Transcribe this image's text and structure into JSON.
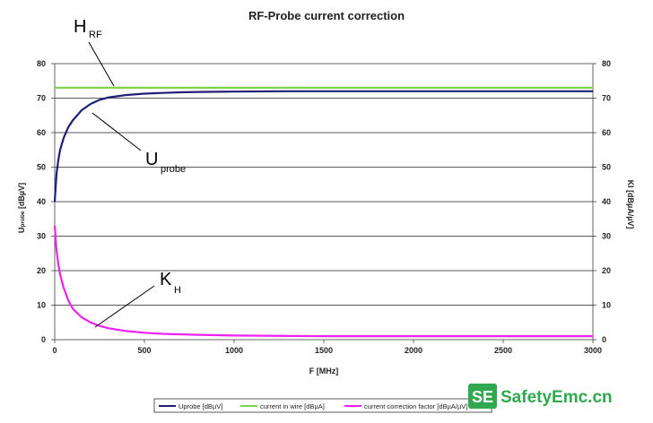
{
  "chart_data": {
    "type": "line",
    "title": "RF-Probe current correction",
    "xlabel": "F [MHz]",
    "ylabel_left": {
      "main": "U",
      "sub": "probe",
      "tail": " [dBµV]"
    },
    "ylabel_right": "KI [dBµA/µV]",
    "xlim": [
      0,
      3000
    ],
    "ylim": [
      0,
      80
    ],
    "xticks": [
      "0",
      "500",
      "1000",
      "1500",
      "2000",
      "2500",
      "3000"
    ],
    "yticks": [
      "0",
      "10",
      "20",
      "30",
      "40",
      "50",
      "60",
      "70",
      "80"
    ],
    "grid": "horizontal",
    "series": [
      {
        "name": "Uprobe [dBµV]",
        "color": "#1f1f7a",
        "points": [
          [
            0,
            40
          ],
          [
            10,
            48
          ],
          [
            20,
            52
          ],
          [
            30,
            55
          ],
          [
            50,
            58.5
          ],
          [
            75,
            61.5
          ],
          [
            100,
            63.5
          ],
          [
            150,
            66.5
          ],
          [
            200,
            68.3
          ],
          [
            250,
            69.5
          ],
          [
            300,
            70.2
          ],
          [
            400,
            70.9
          ],
          [
            500,
            71.3
          ],
          [
            600,
            71.5
          ],
          [
            700,
            71.7
          ],
          [
            800,
            71.8
          ],
          [
            1000,
            71.9
          ],
          [
            1300,
            72.0
          ],
          [
            1500,
            72.0
          ],
          [
            2000,
            72.0
          ],
          [
            2500,
            72.0
          ],
          [
            3000,
            72.0
          ]
        ]
      },
      {
        "name": "current in wire [dBµA]",
        "color": "#7dd34a",
        "points": [
          [
            0,
            73
          ],
          [
            3000,
            73
          ]
        ]
      },
      {
        "name": "current correction factor [dBµA/µV]",
        "color": "#ee22ee",
        "points": [
          [
            0,
            33
          ],
          [
            10,
            26
          ],
          [
            20,
            22
          ],
          [
            30,
            19
          ],
          [
            50,
            15
          ],
          [
            75,
            11.5
          ],
          [
            100,
            9
          ],
          [
            150,
            6.5
          ],
          [
            200,
            5
          ],
          [
            250,
            4
          ],
          [
            300,
            3.3
          ],
          [
            400,
            2.5
          ],
          [
            500,
            2
          ],
          [
            600,
            1.7
          ],
          [
            800,
            1.4
          ],
          [
            1000,
            1.2
          ],
          [
            1500,
            1.0
          ],
          [
            2000,
            1.0
          ],
          [
            2500,
            1.0
          ],
          [
            3000,
            1.0
          ]
        ]
      }
    ],
    "annotations": [
      {
        "main": "H",
        "sub": "RF"
      },
      {
        "main": "U",
        "sub": "probe"
      },
      {
        "main": "K",
        "sub": "H"
      }
    ],
    "legend_position": "bottom"
  },
  "watermark": {
    "badge": "SE",
    "text": "SafetyEmc.cn",
    "color": "#2fa84f"
  }
}
